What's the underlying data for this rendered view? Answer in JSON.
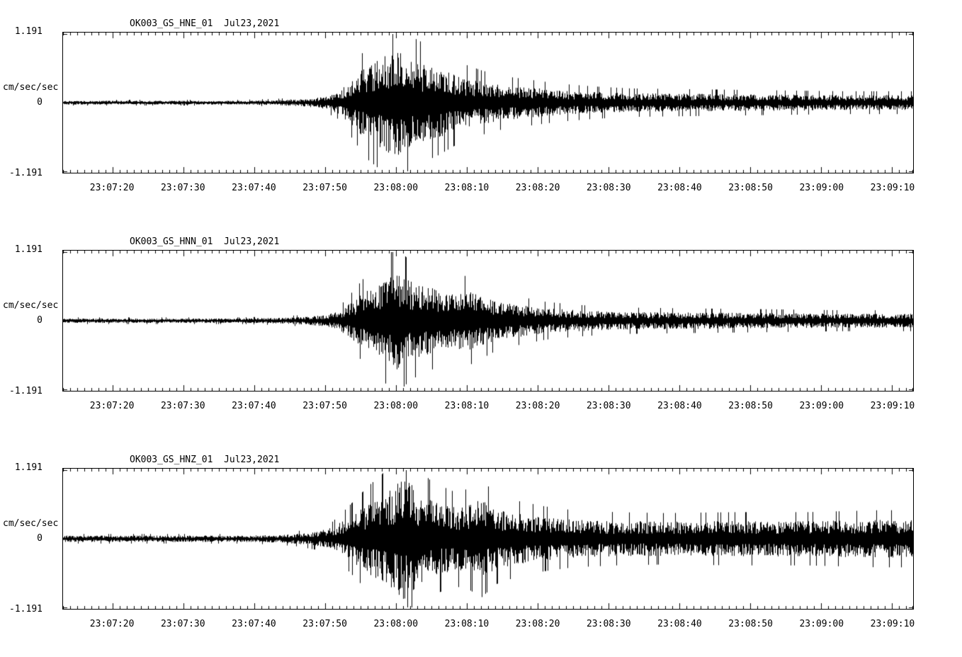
{
  "page": {
    "background": "#ffffff",
    "trace_color": "#000000",
    "frame_color": "#000000"
  },
  "chart_data": [
    {
      "type": "line",
      "kind": "seismogram",
      "title": "OK003_GS_HNE_01  Jul23,2021",
      "ylabel": "cm/sec/sec",
      "ylim": [
        -1.191,
        1.191
      ],
      "yticks": [
        {
          "value": 1.191,
          "label": "1.191"
        },
        {
          "value": 0,
          "label": "0"
        },
        {
          "value": -1.191,
          "label": "-1.191"
        }
      ],
      "x_window_seconds": 120,
      "minor_tick_seconds": 1,
      "x_ticks": [
        {
          "t": 7,
          "label": "23:07:20"
        },
        {
          "t": 17,
          "label": "23:07:30"
        },
        {
          "t": 27,
          "label": "23:07:40"
        },
        {
          "t": 37,
          "label": "23:07:50"
        },
        {
          "t": 47,
          "label": "23:08:00"
        },
        {
          "t": 57,
          "label": "23:08:10"
        },
        {
          "t": 67,
          "label": "23:08:20"
        },
        {
          "t": 77,
          "label": "23:08:30"
        },
        {
          "t": 87,
          "label": "23:08:40"
        },
        {
          "t": 97,
          "label": "23:08:50"
        },
        {
          "t": 107,
          "label": "23:09:00"
        },
        {
          "t": 117,
          "label": "23:09:10"
        }
      ],
      "envelope": [
        [
          0,
          0.03
        ],
        [
          25,
          0.03
        ],
        [
          30,
          0.04
        ],
        [
          34,
          0.06
        ],
        [
          37,
          0.1
        ],
        [
          39,
          0.18
        ],
        [
          41,
          0.4
        ],
        [
          43,
          0.6
        ],
        [
          45,
          0.72
        ],
        [
          47,
          0.88
        ],
        [
          49,
          0.7
        ],
        [
          51,
          0.62
        ],
        [
          53,
          0.55
        ],
        [
          56,
          0.42
        ],
        [
          59,
          0.34
        ],
        [
          62,
          0.28
        ],
        [
          66,
          0.24
        ],
        [
          70,
          0.2
        ],
        [
          75,
          0.17
        ],
        [
          80,
          0.15
        ],
        [
          90,
          0.14
        ],
        [
          100,
          0.13
        ],
        [
          110,
          0.12
        ],
        [
          120,
          0.12
        ]
      ],
      "seed": 7
    },
    {
      "type": "line",
      "kind": "seismogram",
      "title": "OK003_GS_HNN_01  Jul23,2021",
      "ylabel": "cm/sec/sec",
      "ylim": [
        -1.191,
        1.191
      ],
      "yticks": [
        {
          "value": 1.191,
          "label": "1.191"
        },
        {
          "value": 0,
          "label": "0"
        },
        {
          "value": -1.191,
          "label": "-1.191"
        }
      ],
      "x_window_seconds": 120,
      "minor_tick_seconds": 1,
      "x_ticks": [
        {
          "t": 7,
          "label": "23:07:20"
        },
        {
          "t": 17,
          "label": "23:07:30"
        },
        {
          "t": 27,
          "label": "23:07:40"
        },
        {
          "t": 37,
          "label": "23:07:50"
        },
        {
          "t": 47,
          "label": "23:08:00"
        },
        {
          "t": 57,
          "label": "23:08:10"
        },
        {
          "t": 67,
          "label": "23:08:20"
        },
        {
          "t": 77,
          "label": "23:08:30"
        },
        {
          "t": 87,
          "label": "23:08:40"
        },
        {
          "t": 97,
          "label": "23:08:50"
        },
        {
          "t": 107,
          "label": "23:09:00"
        },
        {
          "t": 117,
          "label": "23:09:10"
        }
      ],
      "envelope": [
        [
          0,
          0.035
        ],
        [
          25,
          0.035
        ],
        [
          30,
          0.045
        ],
        [
          34,
          0.06
        ],
        [
          37,
          0.09
        ],
        [
          39,
          0.15
        ],
        [
          41,
          0.32
        ],
        [
          43,
          0.5
        ],
        [
          45,
          0.62
        ],
        [
          47,
          0.78
        ],
        [
          49,
          0.62
        ],
        [
          51,
          0.55
        ],
        [
          53,
          0.48
        ],
        [
          55,
          0.42
        ],
        [
          57,
          0.48
        ],
        [
          59,
          0.4
        ],
        [
          61,
          0.32
        ],
        [
          64,
          0.26
        ],
        [
          68,
          0.2
        ],
        [
          72,
          0.17
        ],
        [
          78,
          0.14
        ],
        [
          88,
          0.13
        ],
        [
          100,
          0.12
        ],
        [
          110,
          0.11
        ],
        [
          120,
          0.11
        ]
      ],
      "seed": 11
    },
    {
      "type": "line",
      "kind": "seismogram",
      "title": "OK003_GS_HNZ_01  Jul23,2021",
      "ylabel": "cm/sec/sec",
      "ylim": [
        -1.191,
        1.191
      ],
      "yticks": [
        {
          "value": 1.191,
          "label": "1.191"
        },
        {
          "value": 0,
          "label": "0"
        },
        {
          "value": -1.191,
          "label": "-1.191"
        }
      ],
      "x_window_seconds": 120,
      "minor_tick_seconds": 1,
      "x_ticks": [
        {
          "t": 7,
          "label": "23:07:20"
        },
        {
          "t": 17,
          "label": "23:07:30"
        },
        {
          "t": 27,
          "label": "23:07:40"
        },
        {
          "t": 37,
          "label": "23:07:50"
        },
        {
          "t": 47,
          "label": "23:08:00"
        },
        {
          "t": 57,
          "label": "23:08:10"
        },
        {
          "t": 67,
          "label": "23:08:20"
        },
        {
          "t": 77,
          "label": "23:08:30"
        },
        {
          "t": 87,
          "label": "23:08:40"
        },
        {
          "t": 97,
          "label": "23:08:50"
        },
        {
          "t": 107,
          "label": "23:09:00"
        },
        {
          "t": 117,
          "label": "23:09:10"
        }
      ],
      "envelope": [
        [
          0,
          0.05
        ],
        [
          25,
          0.05
        ],
        [
          30,
          0.06
        ],
        [
          33,
          0.08
        ],
        [
          36,
          0.12
        ],
        [
          38,
          0.18
        ],
        [
          40,
          0.32
        ],
        [
          43,
          0.55
        ],
        [
          45,
          0.68
        ],
        [
          47,
          0.85
        ],
        [
          48,
          1.0
        ],
        [
          50,
          0.75
        ],
        [
          52,
          0.6
        ],
        [
          55,
          0.5
        ],
        [
          57,
          0.52
        ],
        [
          59,
          0.62
        ],
        [
          61,
          0.48
        ],
        [
          64,
          0.4
        ],
        [
          68,
          0.34
        ],
        [
          72,
          0.3
        ],
        [
          78,
          0.28
        ],
        [
          85,
          0.27
        ],
        [
          95,
          0.28
        ],
        [
          105,
          0.28
        ],
        [
          115,
          0.3
        ],
        [
          120,
          0.3
        ]
      ],
      "seed": 23
    }
  ]
}
